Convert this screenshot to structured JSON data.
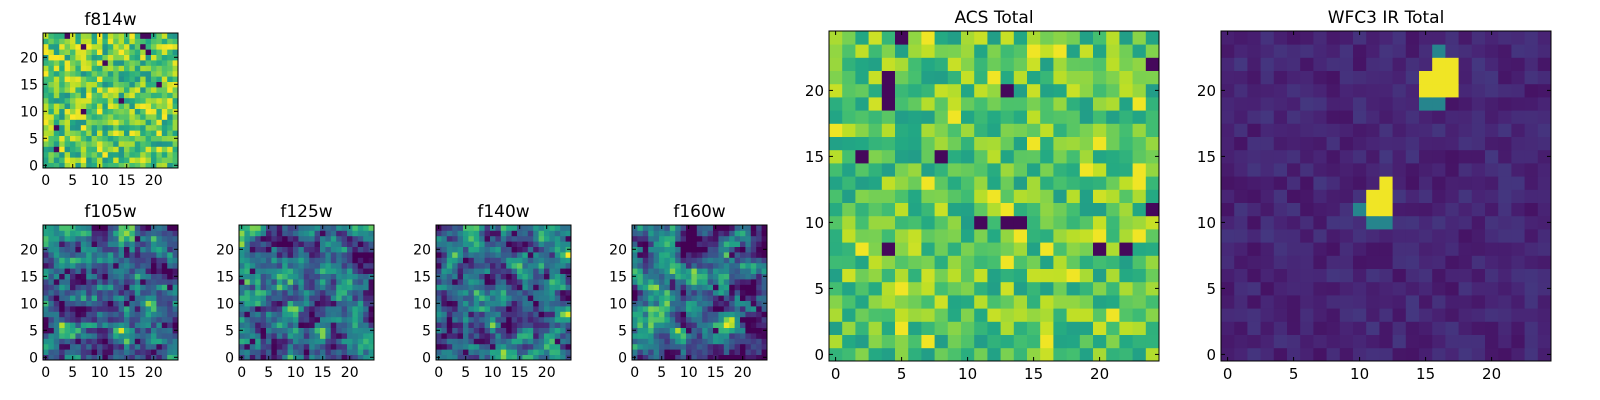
{
  "chart_data": [
    {
      "id": "f814w",
      "type": "heatmap",
      "title": "f814w",
      "xticks": [
        0,
        5,
        10,
        15,
        20
      ],
      "yticks": [
        0,
        5,
        10,
        15,
        20
      ],
      "xlim": [
        0,
        25
      ],
      "ylim": [
        0,
        25
      ],
      "grid": false,
      "colormap": "viridis",
      "cells": 25,
      "seed": 11,
      "profile": "fine"
    },
    {
      "id": "f105w",
      "type": "heatmap",
      "title": "f105w",
      "xticks": [
        0,
        5,
        10,
        15,
        20
      ],
      "yticks": [
        0,
        5,
        10,
        15,
        20
      ],
      "xlim": [
        0,
        25
      ],
      "ylim": [
        0,
        25
      ],
      "grid": false,
      "colormap": "viridis",
      "cells": 25,
      "seed": 23,
      "profile": "smooth"
    },
    {
      "id": "f125w",
      "type": "heatmap",
      "title": "f125w",
      "xticks": [
        0,
        5,
        10,
        15,
        20
      ],
      "yticks": [
        0,
        5,
        10,
        15,
        20
      ],
      "xlim": [
        0,
        25
      ],
      "ylim": [
        0,
        25
      ],
      "grid": false,
      "colormap": "viridis",
      "cells": 25,
      "seed": 37,
      "profile": "smooth"
    },
    {
      "id": "f140w",
      "type": "heatmap",
      "title": "f140w",
      "xticks": [
        0,
        5,
        10,
        15,
        20
      ],
      "yticks": [
        0,
        5,
        10,
        15,
        20
      ],
      "xlim": [
        0,
        25
      ],
      "ylim": [
        0,
        25
      ],
      "grid": false,
      "colormap": "viridis",
      "cells": 25,
      "seed": 41,
      "profile": "smooth"
    },
    {
      "id": "f160w",
      "type": "heatmap",
      "title": "f160w",
      "xticks": [
        0,
        5,
        10,
        15,
        20
      ],
      "yticks": [
        0,
        5,
        10,
        15,
        20
      ],
      "xlim": [
        0,
        25
      ],
      "ylim": [
        0,
        25
      ],
      "grid": false,
      "colormap": "viridis",
      "cells": 25,
      "seed": 53,
      "profile": "smooth"
    },
    {
      "id": "acs_total",
      "type": "heatmap",
      "title": "ACS Total",
      "xticks": [
        0,
        5,
        10,
        15,
        20
      ],
      "yticks": [
        0,
        5,
        10,
        15,
        20
      ],
      "xlim": [
        0,
        25
      ],
      "ylim": [
        0,
        25
      ],
      "grid": false,
      "colormap": "viridis",
      "cells": 25,
      "seed": 67,
      "profile": "acs"
    },
    {
      "id": "wfc3_ir_total",
      "type": "heatmap",
      "title": "WFC3 IR Total",
      "xticks": [
        0,
        5,
        10,
        15,
        20
      ],
      "yticks": [
        0,
        5,
        10,
        15,
        20
      ],
      "xlim": [
        0,
        25
      ],
      "ylim": [
        0,
        25
      ],
      "grid": false,
      "colormap": "viridis",
      "cells": 25,
      "seed": 79,
      "profile": "ir",
      "bright_pixels": [
        [
          15,
          20
        ],
        [
          16,
          20
        ],
        [
          17,
          20
        ],
        [
          15,
          21
        ],
        [
          16,
          21
        ],
        [
          17,
          21
        ],
        [
          16,
          22
        ],
        [
          17,
          22
        ],
        [
          11,
          11
        ],
        [
          12,
          11
        ],
        [
          11,
          12
        ],
        [
          12,
          12
        ],
        [
          12,
          13
        ]
      ],
      "medium_pixels": [
        [
          16,
          23
        ],
        [
          15,
          19
        ],
        [
          16,
          19
        ],
        [
          10,
          11
        ],
        [
          11,
          10
        ],
        [
          12,
          10
        ]
      ]
    }
  ]
}
